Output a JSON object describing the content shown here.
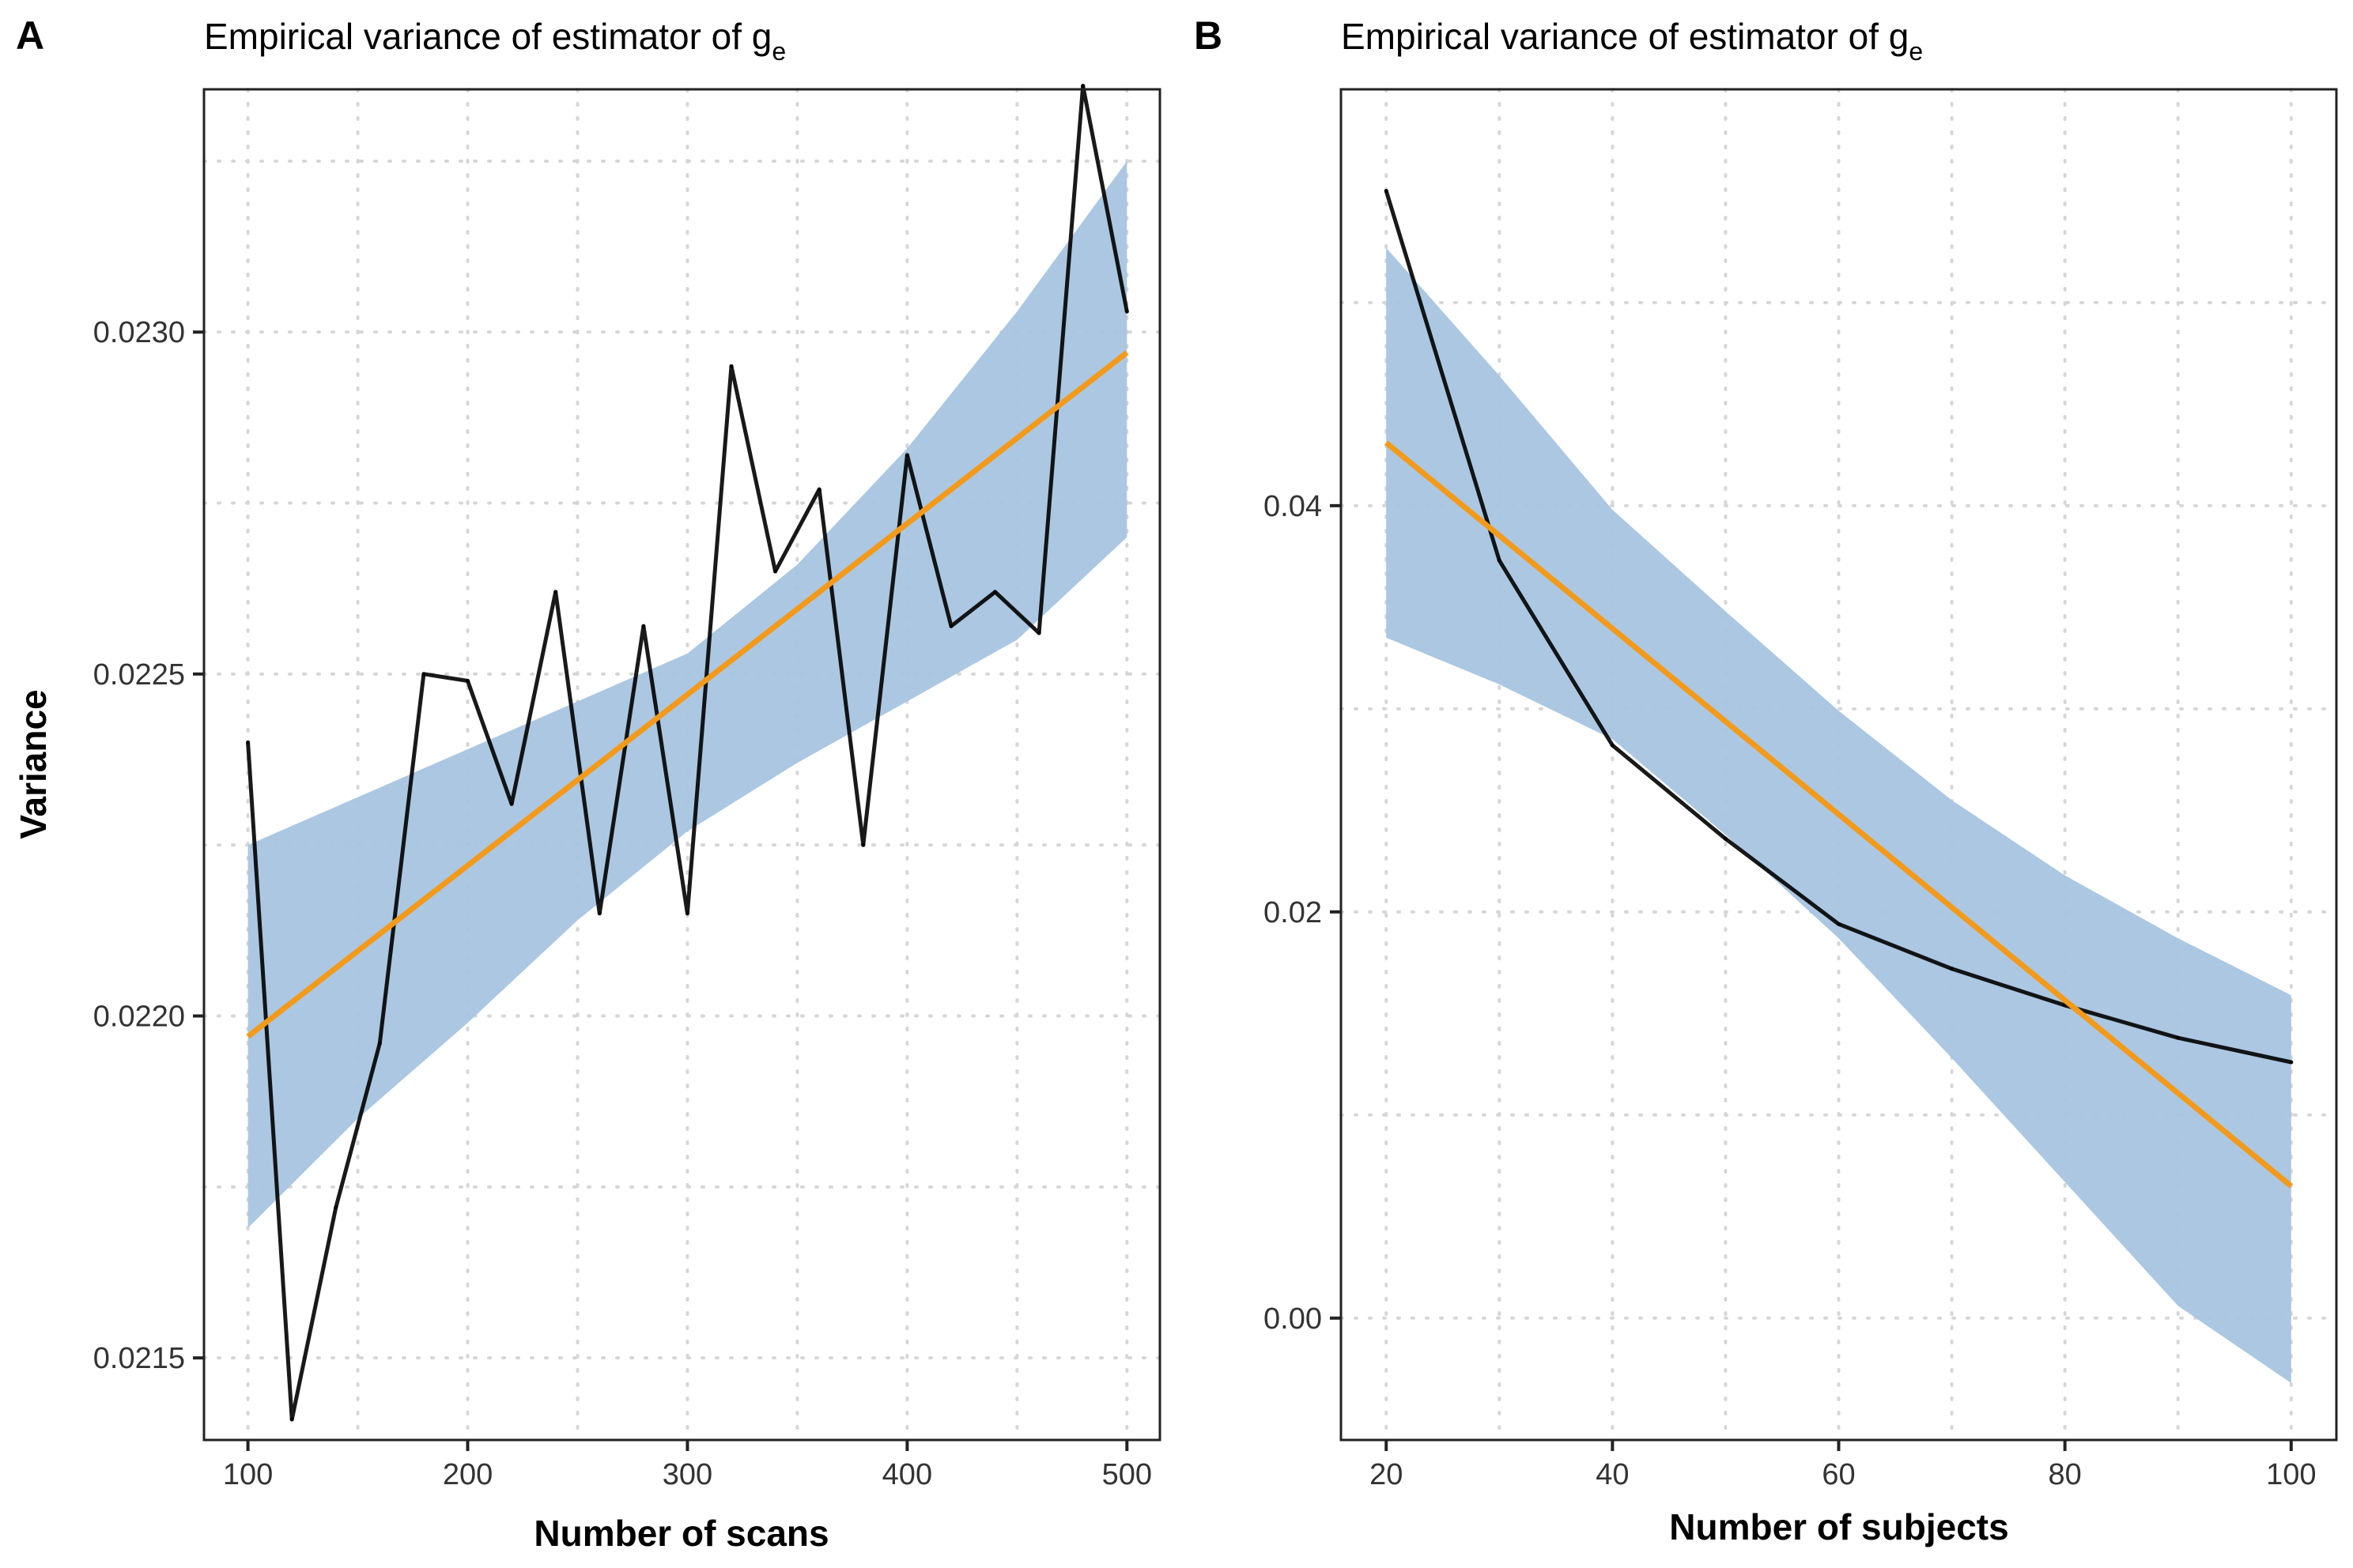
{
  "figure": {
    "panel_a_tag": "A",
    "panel_b_tag": "B"
  },
  "chart_data": [
    {
      "type": "line",
      "panel": "A",
      "title": "Empirical variance of estimator of g",
      "title_subscript": "e",
      "xlabel": "Number of scans",
      "ylabel": "Variance",
      "xlim": [
        80,
        515
      ],
      "ylim": [
        0.02138,
        0.023355
      ],
      "xticks": [
        100,
        200,
        300,
        400,
        500
      ],
      "xtick_labels": [
        "100",
        "200",
        "300",
        "400",
        "500"
      ],
      "yticks": [
        0.0215,
        0.022,
        0.0225,
        0.023
      ],
      "ytick_labels": [
        "0.0215",
        "0.0220",
        "0.0225",
        "0.0230"
      ],
      "x_minor_grid": [
        150,
        250,
        350,
        450
      ],
      "y_minor_grid": [
        0.02175,
        0.02225,
        0.02275,
        0.02325
      ],
      "grid": true,
      "series": [
        {
          "role": "observed",
          "color": "#000000",
          "x": [
            100,
            120,
            140,
            160,
            180,
            200,
            220,
            240,
            260,
            280,
            300,
            320,
            340,
            360,
            380,
            400,
            420,
            440,
            460,
            480,
            500
          ],
          "y": [
            0.0224,
            0.02141,
            0.02172,
            0.02196,
            0.0225,
            0.02249,
            0.02231,
            0.02262,
            0.02215,
            0.02257,
            0.02215,
            0.02295,
            0.02265,
            0.02277,
            0.02225,
            0.02282,
            0.02257,
            0.02262,
            0.02256,
            0.02336,
            0.02303
          ]
        }
      ],
      "fit": {
        "color": "#f39a1b",
        "x": [
          100,
          500
        ],
        "y": [
          0.02197,
          0.02297
        ]
      },
      "ribbon": {
        "color": "#a8c4df",
        "x": [
          100,
          150,
          200,
          250,
          300,
          350,
          400,
          450,
          500
        ],
        "lower": [
          0.02169,
          0.02185,
          0.02199,
          0.02214,
          0.02227,
          0.02237,
          0.02246,
          0.02255,
          0.0227
        ],
        "upper": [
          0.02225,
          0.02232,
          0.02239,
          0.02246,
          0.02253,
          0.02266,
          0.02283,
          0.02303,
          0.02325
        ]
      }
    },
    {
      "type": "line",
      "panel": "B",
      "title": "Empirical variance of estimator of g",
      "title_subscript": "e",
      "xlabel": "Number of subjects",
      "ylabel": "",
      "xlim": [
        16,
        104
      ],
      "ylim": [
        -0.006,
        0.0605
      ],
      "xticks": [
        20,
        40,
        60,
        80,
        100
      ],
      "xtick_labels": [
        "20",
        "40",
        "60",
        "80",
        "100"
      ],
      "yticks": [
        0.0,
        0.02,
        0.04
      ],
      "ytick_labels": [
        "0.00",
        "0.02",
        "0.04"
      ],
      "x_minor_grid": [
        30,
        50,
        70,
        90
      ],
      "y_minor_grid": [
        0.01,
        0.03,
        0.05
      ],
      "grid": true,
      "series": [
        {
          "role": "observed",
          "color": "#000000",
          "x": [
            20,
            30,
            40,
            50,
            60,
            70,
            80,
            90,
            100
          ],
          "y": [
            0.0555,
            0.0373,
            0.0282,
            0.0236,
            0.0194,
            0.0172,
            0.0154,
            0.0138,
            0.0126
          ]
        }
      ],
      "fit": {
        "color": "#f39a1b",
        "x": [
          20,
          100
        ],
        "y": [
          0.0431,
          0.0065
        ]
      },
      "ribbon": {
        "color": "#a8c4df",
        "x": [
          20,
          30,
          40,
          50,
          60,
          70,
          80,
          90,
          100
        ],
        "lower": [
          0.0335,
          0.0312,
          0.0285,
          0.0238,
          0.0187,
          0.0128,
          0.0067,
          0.0006,
          -0.0032
        ],
        "upper": [
          0.0527,
          0.0464,
          0.0398,
          0.0348,
          0.0299,
          0.0255,
          0.0218,
          0.0187,
          0.0159
        ]
      }
    }
  ]
}
